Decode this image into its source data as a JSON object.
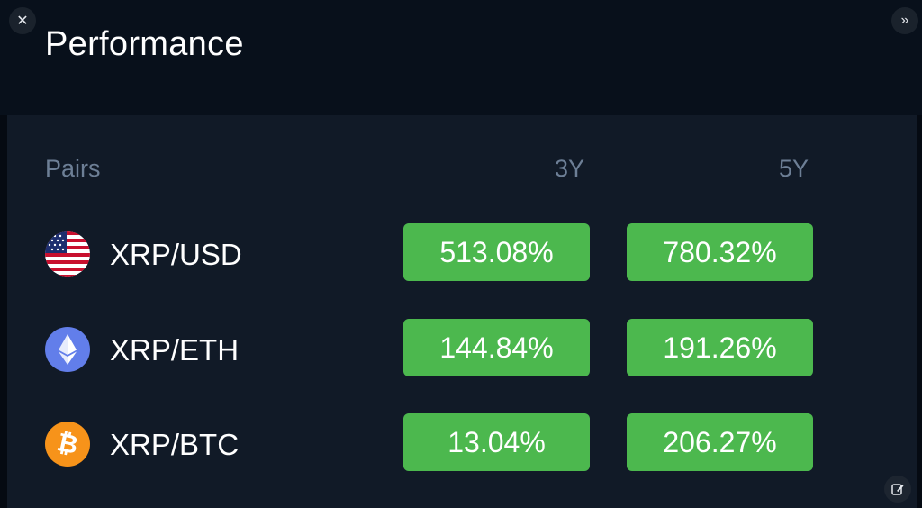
{
  "header": {
    "title": "Performance",
    "close_icon": "close-icon",
    "expand_icon": "double-chevron-right-icon"
  },
  "table": {
    "columns": [
      "Pairs",
      "3Y",
      "5Y"
    ],
    "rows": [
      {
        "pair": "XRP/USD",
        "icon": "us-flag-icon",
        "y3": "513.08%",
        "y5": "780.32%"
      },
      {
        "pair": "XRP/ETH",
        "icon": "ethereum-icon",
        "y3": "144.84%",
        "y5": "191.26%"
      },
      {
        "pair": "XRP/BTC",
        "icon": "bitcoin-icon",
        "y3": "13.04%",
        "y5": "206.27%"
      }
    ]
  },
  "colors": {
    "background": "#050a12",
    "panel": "#111a27",
    "positive": "#4cb84e",
    "header_text": "#6d7f96",
    "eth": "#627eea",
    "btc": "#f7931a"
  }
}
